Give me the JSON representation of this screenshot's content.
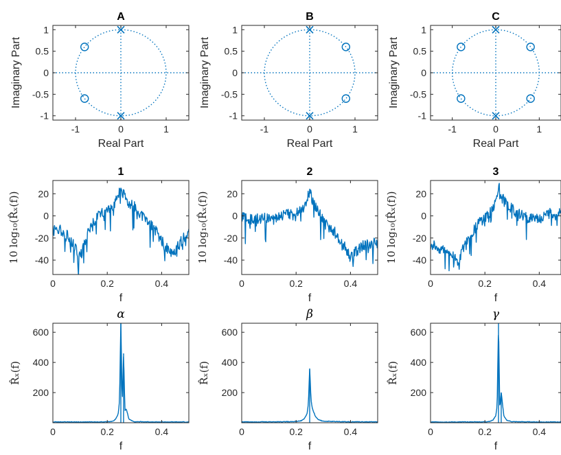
{
  "colors": {
    "series": "#0072BD",
    "axes": "#262626",
    "background": "#ffffff"
  },
  "chart_data": [
    {
      "id": "A",
      "type": "scatter",
      "subtype": "pole-zero",
      "title": "A",
      "xlabel": "Real Part",
      "ylabel": "Imaginary Part",
      "xlim": [
        -1.5,
        1.5
      ],
      "ylim": [
        -1.1,
        1.1
      ],
      "xticks": [
        -1,
        0,
        1
      ],
      "yticks": [
        -1,
        -0.5,
        0,
        0.5,
        1
      ],
      "xtick_labels": [
        "-1",
        "0",
        "1"
      ],
      "ytick_labels": [
        "-1",
        "-0.5",
        "0",
        "0.5",
        "1"
      ],
      "unit_circle": true,
      "zeros": [
        [
          -0.8,
          0.6
        ],
        [
          -0.8,
          -0.6
        ]
      ],
      "poles": [
        [
          0,
          1
        ],
        [
          0,
          -1
        ]
      ]
    },
    {
      "id": "B",
      "type": "scatter",
      "subtype": "pole-zero",
      "title": "B",
      "xlabel": "Real Part",
      "ylabel": "Imaginary Part",
      "xlim": [
        -1.5,
        1.5
      ],
      "ylim": [
        -1.1,
        1.1
      ],
      "xticks": [
        -1,
        0,
        1
      ],
      "yticks": [
        -1,
        -0.5,
        0,
        0.5,
        1
      ],
      "xtick_labels": [
        "-1",
        "0",
        "1"
      ],
      "ytick_labels": [
        "-1",
        "-0.5",
        "0",
        "0.5",
        "1"
      ],
      "unit_circle": true,
      "zeros": [
        [
          0.8,
          0.6
        ],
        [
          0.8,
          -0.6
        ]
      ],
      "poles": [
        [
          0,
          1
        ],
        [
          0,
          -1
        ]
      ]
    },
    {
      "id": "C",
      "type": "scatter",
      "subtype": "pole-zero",
      "title": "C",
      "xlabel": "Real Part",
      "ylabel": "Imaginary Part",
      "xlim": [
        -1.5,
        1.5
      ],
      "ylim": [
        -1.1,
        1.1
      ],
      "xticks": [
        -1,
        0,
        1
      ],
      "yticks": [
        -1,
        -0.5,
        0,
        0.5,
        1
      ],
      "xtick_labels": [
        "-1",
        "0",
        "1"
      ],
      "ytick_labels": [
        "-1",
        "-0.5",
        "0",
        "0.5",
        "1"
      ],
      "unit_circle": true,
      "zeros": [
        [
          -0.8,
          0.6
        ],
        [
          -0.8,
          -0.6
        ],
        [
          0.8,
          0.6
        ],
        [
          0.8,
          -0.6
        ]
      ],
      "poles": [
        [
          0,
          1
        ],
        [
          0,
          -1
        ]
      ]
    },
    {
      "id": "1",
      "type": "line",
      "title": "1",
      "xlabel": "f",
      "ylabel_math": "10 log₁₀(R̂ₓ(f))",
      "xlim": [
        0,
        0.5
      ],
      "ylim": [
        -53,
        32
      ],
      "xticks": [
        0,
        0.2,
        0.4
      ],
      "yticks": [
        -40,
        -20,
        0,
        20
      ],
      "xtick_labels": [
        "0",
        "0.2",
        "0.4"
      ],
      "ytick_labels": [
        "-40",
        "-20",
        "0",
        "20"
      ],
      "x": [
        0,
        0.02,
        0.04,
        0.06,
        0.08,
        0.1,
        0.12,
        0.14,
        0.16,
        0.18,
        0.2,
        0.22,
        0.24,
        0.25,
        0.26,
        0.28,
        0.3,
        0.32,
        0.34,
        0.36,
        0.38,
        0.4,
        0.42,
        0.44,
        0.46,
        0.48,
        0.5
      ],
      "y": [
        -10,
        -12,
        -14,
        -20,
        -28,
        -38,
        -22,
        -8,
        -2,
        2,
        6,
        10,
        16,
        26,
        20,
        12,
        8,
        2,
        -4,
        -8,
        -14,
        -22,
        -30,
        -36,
        -28,
        -20,
        -14
      ]
    },
    {
      "id": "2",
      "type": "line",
      "title": "2",
      "xlabel": "f",
      "ylabel_math": "10 log₁₀(R̂ₓ(f))",
      "xlim": [
        0,
        0.5
      ],
      "ylim": [
        -53,
        32
      ],
      "xticks": [
        0,
        0.2,
        0.4
      ],
      "yticks": [
        -40,
        -20,
        0,
        20
      ],
      "xtick_labels": [
        "0",
        "0.2",
        "0.4"
      ],
      "ytick_labels": [
        "-40",
        "-20",
        "0",
        "20"
      ],
      "x": [
        0,
        0.02,
        0.04,
        0.06,
        0.08,
        0.1,
        0.12,
        0.14,
        0.16,
        0.18,
        0.2,
        0.22,
        0.24,
        0.25,
        0.26,
        0.28,
        0.3,
        0.32,
        0.34,
        0.36,
        0.38,
        0.4,
        0.42,
        0.44,
        0.46,
        0.48,
        0.5
      ],
      "y": [
        -2,
        -2,
        -3,
        -2,
        -2,
        -3,
        -2,
        0,
        1,
        2,
        4,
        8,
        14,
        22,
        14,
        4,
        -4,
        -10,
        -14,
        -20,
        -28,
        -38,
        -32,
        -28,
        -26,
        -24,
        -24
      ]
    },
    {
      "id": "3",
      "type": "line",
      "title": "3",
      "xlabel": "f",
      "ylabel_math": "10 log₁₀(R̂ₓ(f))",
      "xlim": [
        0,
        0.48
      ],
      "ylim": [
        -53,
        32
      ],
      "xticks": [
        0,
        0.2,
        0.4
      ],
      "yticks": [
        -40,
        -20,
        0,
        20
      ],
      "xtick_labels": [
        "0",
        "0.2",
        "0.4"
      ],
      "ytick_labels": [
        "-40",
        "-20",
        "0",
        "20"
      ],
      "x": [
        0,
        0.02,
        0.04,
        0.06,
        0.08,
        0.1,
        0.12,
        0.14,
        0.16,
        0.18,
        0.2,
        0.22,
        0.24,
        0.25,
        0.26,
        0.28,
        0.3,
        0.32,
        0.34,
        0.36,
        0.38,
        0.4,
        0.42,
        0.44,
        0.46,
        0.48
      ],
      "y": [
        -26,
        -28,
        -30,
        -32,
        -36,
        -42,
        -30,
        -20,
        -12,
        -6,
        -2,
        4,
        12,
        28,
        18,
        10,
        6,
        2,
        0,
        -2,
        0,
        -2,
        0,
        2,
        4,
        6
      ]
    },
    {
      "id": "alpha",
      "type": "line",
      "title_math": "α",
      "xlabel": "f",
      "ylabel_math": "R̂ₓ(f)",
      "xlim": [
        0,
        0.5
      ],
      "ylim": [
        0,
        660
      ],
      "xticks": [
        0,
        0.2,
        0.4
      ],
      "yticks": [
        200,
        400,
        600
      ],
      "xtick_labels": [
        "0",
        "0.2",
        "0.4"
      ],
      "ytick_labels": [
        "200",
        "400",
        "600"
      ],
      "x": [
        0,
        0.1,
        0.2,
        0.22,
        0.23,
        0.24,
        0.245,
        0.25,
        0.255,
        0.26,
        0.265,
        0.27,
        0.28,
        0.3,
        0.4,
        0.5
      ],
      "y": [
        3,
        3,
        4,
        8,
        20,
        55,
        140,
        660,
        120,
        460,
        80,
        90,
        20,
        5,
        3,
        3
      ]
    },
    {
      "id": "beta",
      "type": "line",
      "title_math": "β",
      "xlabel": "f",
      "ylabel_math": "R̂ₓ(f)",
      "xlim": [
        0,
        0.5
      ],
      "ylim": [
        0,
        660
      ],
      "xticks": [
        0,
        0.2,
        0.4
      ],
      "yticks": [
        200,
        400,
        600
      ],
      "xtick_labels": [
        "0",
        "0.2",
        "0.4"
      ],
      "ytick_labels": [
        "200",
        "400",
        "600"
      ],
      "x": [
        0,
        0.1,
        0.2,
        0.22,
        0.23,
        0.24,
        0.245,
        0.25,
        0.255,
        0.26,
        0.27,
        0.28,
        0.3,
        0.4,
        0.5
      ],
      "y": [
        4,
        4,
        6,
        12,
        25,
        55,
        120,
        355,
        150,
        90,
        45,
        20,
        8,
        4,
        4
      ]
    },
    {
      "id": "gamma",
      "type": "line",
      "title_math": "γ",
      "xlabel": "f",
      "ylabel_math": "R̂ₓ(f)",
      "xlim": [
        0,
        0.48
      ],
      "ylim": [
        0,
        660
      ],
      "xticks": [
        0,
        0.2,
        0.4
      ],
      "yticks": [
        200,
        400,
        600
      ],
      "xtick_labels": [
        "0",
        "0.2",
        "0.4"
      ],
      "ytick_labels": [
        "200",
        "400",
        "600"
      ],
      "x": [
        0,
        0.1,
        0.2,
        0.22,
        0.23,
        0.24,
        0.245,
        0.25,
        0.255,
        0.26,
        0.27,
        0.28,
        0.3,
        0.4,
        0.48
      ],
      "y": [
        3,
        3,
        4,
        8,
        16,
        45,
        110,
        660,
        90,
        200,
        40,
        15,
        5,
        3,
        3
      ]
    }
  ]
}
